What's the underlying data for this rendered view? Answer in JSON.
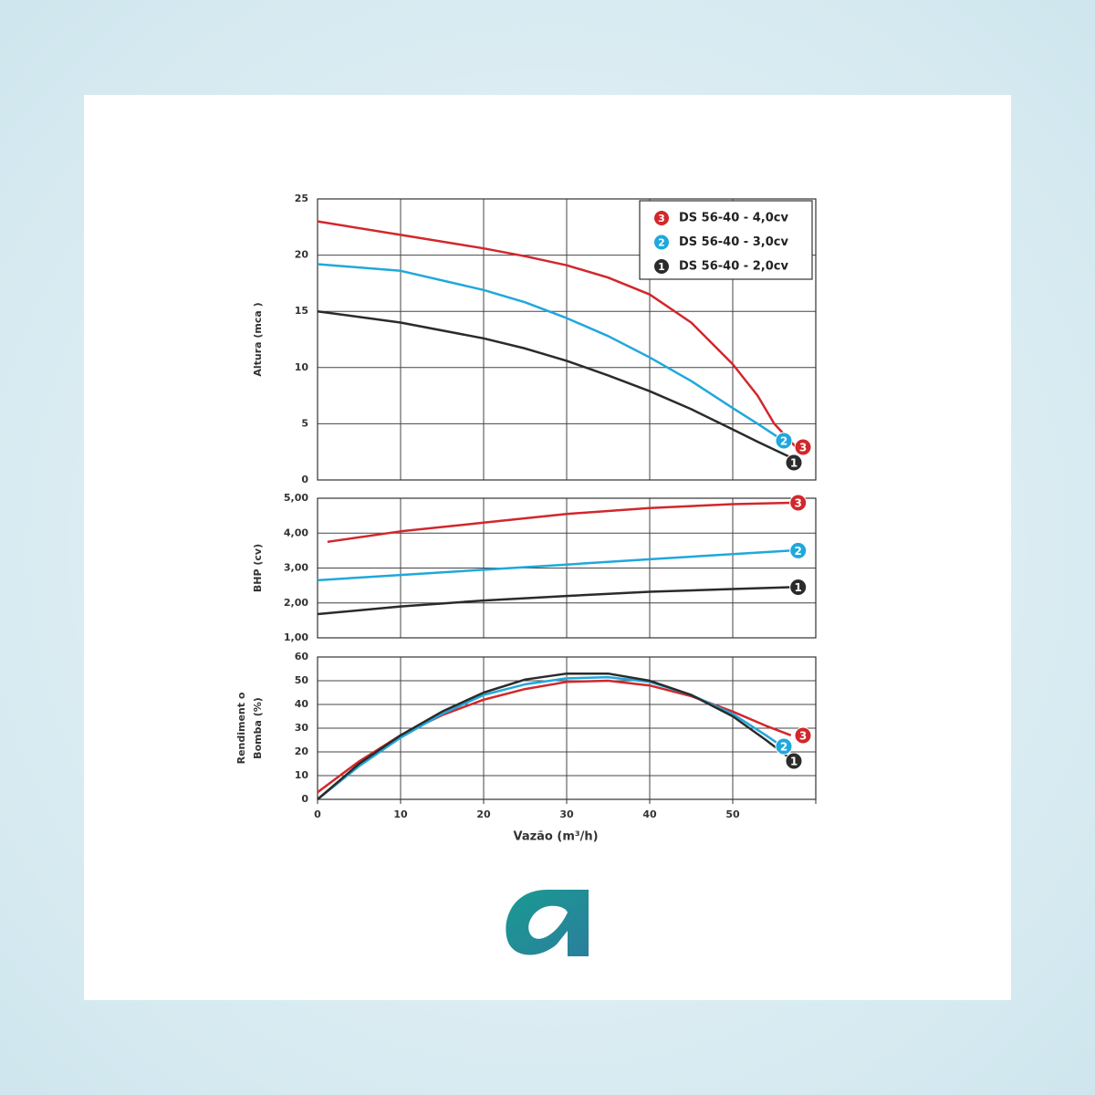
{
  "chart_data": [
    {
      "type": "line",
      "ylabel": [
        "Altura (mca )"
      ],
      "xlim": [
        0,
        60
      ],
      "ylim": [
        0,
        25
      ],
      "yticks": [
        0,
        5,
        10,
        15,
        20,
        25
      ],
      "grid": true,
      "legend": "top-right",
      "series": [
        {
          "name": "DS 56-40 - 4,0cv",
          "badge": "3",
          "color": "#d2272b",
          "x": [
            0,
            10,
            20,
            25,
            30,
            35,
            40,
            45,
            50,
            53,
            55,
            57.5
          ],
          "values": [
            23,
            21.8,
            20.6,
            19.9,
            19.1,
            18,
            16.5,
            14,
            10.3,
            7.5,
            5,
            3
          ]
        },
        {
          "name": "DS 56-40 - 3,0cv",
          "badge": "2",
          "color": "#1fa8dc",
          "x": [
            0,
            10,
            20,
            25,
            30,
            35,
            40,
            45,
            50,
            53,
            56.5
          ],
          "values": [
            19.2,
            18.6,
            16.9,
            15.8,
            14.4,
            12.8,
            10.9,
            8.8,
            6.4,
            5,
            3.3
          ]
        },
        {
          "name": "DS 56-40 - 2,0cv",
          "badge": "1",
          "color": "#2b2b2b",
          "x": [
            0,
            10,
            20,
            25,
            30,
            35,
            40,
            45,
            50,
            53,
            57
          ],
          "values": [
            15,
            14,
            12.6,
            11.7,
            10.6,
            9.3,
            7.9,
            6.3,
            4.5,
            3.4,
            2
          ]
        }
      ]
    },
    {
      "type": "line",
      "ylabel": [
        "BHP  (cv)"
      ],
      "xlim": [
        0,
        60
      ],
      "ylim": [
        1,
        5
      ],
      "yticks": [
        {
          "value": 1,
          "label": "1,00"
        },
        {
          "value": 2,
          "label": "2,00"
        },
        {
          "value": 3,
          "label": "3,00"
        },
        {
          "value": 4,
          "label": "4,00"
        },
        {
          "value": 5,
          "label": "5,00"
        }
      ],
      "grid": true,
      "series": [
        {
          "badge": "3",
          "color": "#d2272b",
          "x": [
            1.2,
            10,
            20,
            30,
            40,
            50,
            57
          ],
          "values": [
            3.75,
            4.05,
            4.3,
            4.55,
            4.72,
            4.83,
            4.87
          ]
        },
        {
          "badge": "2",
          "color": "#1fa8dc",
          "x": [
            0,
            10,
            20,
            30,
            40,
            50,
            57
          ],
          "values": [
            2.65,
            2.8,
            2.95,
            3.1,
            3.25,
            3.4,
            3.5
          ]
        },
        {
          "badge": "1",
          "color": "#2b2b2b",
          "x": [
            0,
            10,
            20,
            30,
            40,
            50,
            57
          ],
          "values": [
            1.68,
            1.9,
            2.07,
            2.2,
            2.32,
            2.4,
            2.45
          ]
        }
      ]
    },
    {
      "type": "line",
      "ylabel": [
        "Rendiment o",
        "Bomba (%)"
      ],
      "xlabel": "Vazão (m³/h)",
      "xlim": [
        0,
        60
      ],
      "ylim": [
        0,
        60
      ],
      "xticks": [
        0,
        10,
        20,
        30,
        40,
        50
      ],
      "yticks": [
        0,
        10,
        20,
        30,
        40,
        50,
        60
      ],
      "grid": true,
      "series": [
        {
          "badge": "3",
          "color": "#d2272b",
          "x": [
            0,
            5,
            10,
            15,
            20,
            25,
            30,
            35,
            40,
            45,
            50,
            54,
            57
          ],
          "values": [
            3,
            16,
            27,
            35.5,
            42,
            46.5,
            49.5,
            50,
            48,
            43.5,
            37,
            31,
            27
          ]
        },
        {
          "badge": "2",
          "color": "#1fa8dc",
          "x": [
            0,
            5,
            10,
            15,
            20,
            25,
            30,
            35,
            40,
            45,
            50,
            54,
            56.5
          ],
          "values": [
            0,
            14,
            26,
            36,
            44,
            48.5,
            51,
            51.5,
            49.5,
            44,
            36,
            27,
            21
          ]
        },
        {
          "badge": "1",
          "color": "#2b2b2b",
          "x": [
            0,
            5,
            10,
            15,
            20,
            25,
            30,
            35,
            40,
            45,
            50,
            54,
            57
          ],
          "values": [
            0,
            15,
            27,
            37,
            45,
            50.5,
            53,
            53,
            50,
            44,
            35,
            25,
            17
          ]
        }
      ]
    }
  ]
}
